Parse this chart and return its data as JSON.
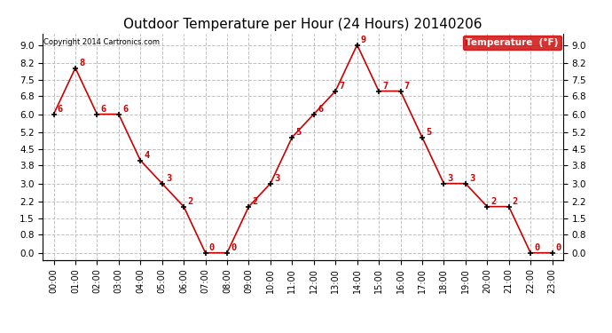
{
  "title": "Outdoor Temperature per Hour (24 Hours) 20140206",
  "copyright_text": "Copyright 2014 Cartronics.com",
  "legend_label": "Temperature  (°F)",
  "hours": [
    "00:00",
    "01:00",
    "02:00",
    "03:00",
    "04:00",
    "05:00",
    "06:00",
    "07:00",
    "08:00",
    "09:00",
    "10:00",
    "11:00",
    "12:00",
    "13:00",
    "14:00",
    "15:00",
    "16:00",
    "17:00",
    "18:00",
    "19:00",
    "20:00",
    "21:00",
    "22:00",
    "23:00"
  ],
  "temperatures": [
    6,
    8,
    6,
    6,
    4,
    3,
    2,
    0,
    0,
    2,
    3,
    5,
    6,
    7,
    9,
    7,
    7,
    5,
    3,
    3,
    2,
    2,
    0,
    0
  ],
  "line_color": "#cc0000",
  "marker_color": "#000000",
  "background_color": "#ffffff",
  "grid_color": "#c0c0c0",
  "ylim_min": -0.3,
  "ylim_max": 9.5,
  "yticks": [
    0.0,
    0.8,
    1.5,
    2.2,
    3.0,
    3.8,
    4.5,
    5.2,
    6.0,
    6.8,
    7.5,
    8.2,
    9.0
  ],
  "title_fontsize": 11,
  "legend_bg": "#cc0000",
  "legend_text_color": "#ffffff"
}
